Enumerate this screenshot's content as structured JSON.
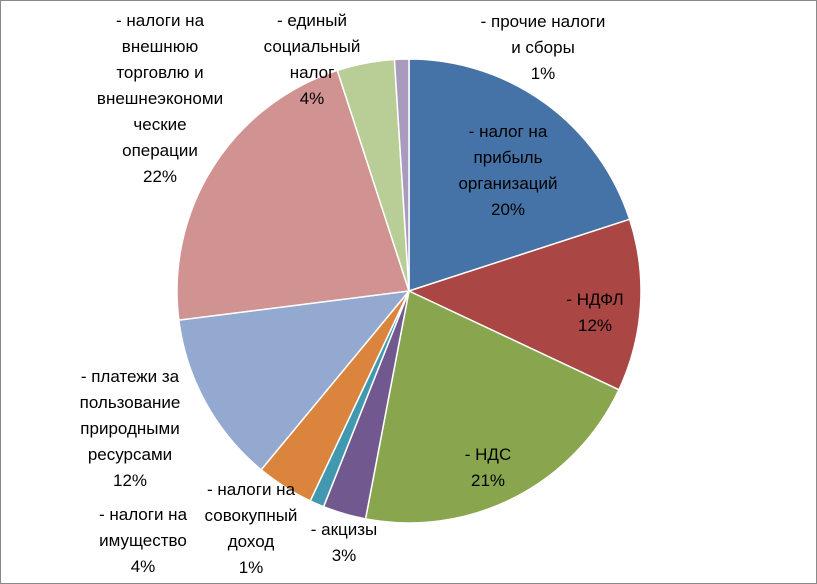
{
  "chart_data": {
    "type": "pie",
    "title": "",
    "start_angle_deg": 0,
    "direction": "clockwise",
    "legend": "none",
    "slices": [
      {
        "name": "налог на прибыль организаций",
        "value": 20,
        "percent_label": "20%",
        "color": "#4572A7",
        "label_lines": [
          "- налог на",
          "прибыль",
          "организаций",
          "20%"
        ]
      },
      {
        "name": "НДФЛ",
        "value": 12,
        "percent_label": "12%",
        "color": "#AA4643",
        "label_lines": [
          "- НДФЛ",
          "12%"
        ]
      },
      {
        "name": "НДС",
        "value": 21,
        "percent_label": "21%",
        "color": "#89A54E",
        "label_lines": [
          "- НДС",
          "21%"
        ]
      },
      {
        "name": "акцизы",
        "value": 3,
        "percent_label": "3%",
        "color": "#71588F",
        "label_lines": [
          "- акцизы",
          "3%"
        ]
      },
      {
        "name": "налоги на совокупный доход",
        "value": 1,
        "percent_label": "1%",
        "color": "#4198AF",
        "label_lines": [
          "- налоги на",
          "совокупный",
          "доход",
          "1%"
        ]
      },
      {
        "name": "налоги на имущество",
        "value": 4,
        "percent_label": "4%",
        "color": "#DB843D",
        "label_lines": [
          "- налоги на",
          "имущество",
          "4%"
        ]
      },
      {
        "name": "платежи за пользование природными ресурсами",
        "value": 12,
        "percent_label": "12%",
        "color": "#93A9CF",
        "label_lines": [
          "- платежи за",
          "пользование",
          "природными",
          "ресурсами",
          "12%"
        ]
      },
      {
        "name": "налоги на внешнюю торговлю и внешнеэкономические операции",
        "value": 22,
        "percent_label": "22%",
        "color": "#D19392",
        "label_lines": [
          "- налоги на",
          "внешнюю",
          "торговлю и",
          "внешнеэкономи",
          "ческие",
          "операции",
          "22%"
        ]
      },
      {
        "name": "единый социальный налог",
        "value": 4,
        "percent_label": "4%",
        "color": "#B9CD96",
        "label_lines": [
          "- единый",
          "социальный",
          "налог",
          "4%"
        ]
      },
      {
        "name": "прочие налоги и сборы",
        "value": 1,
        "percent_label": "1%",
        "color": "#A99BBD",
        "label_lines": [
          "- прочие налоги",
          "и сборы",
          "1%"
        ]
      }
    ]
  }
}
